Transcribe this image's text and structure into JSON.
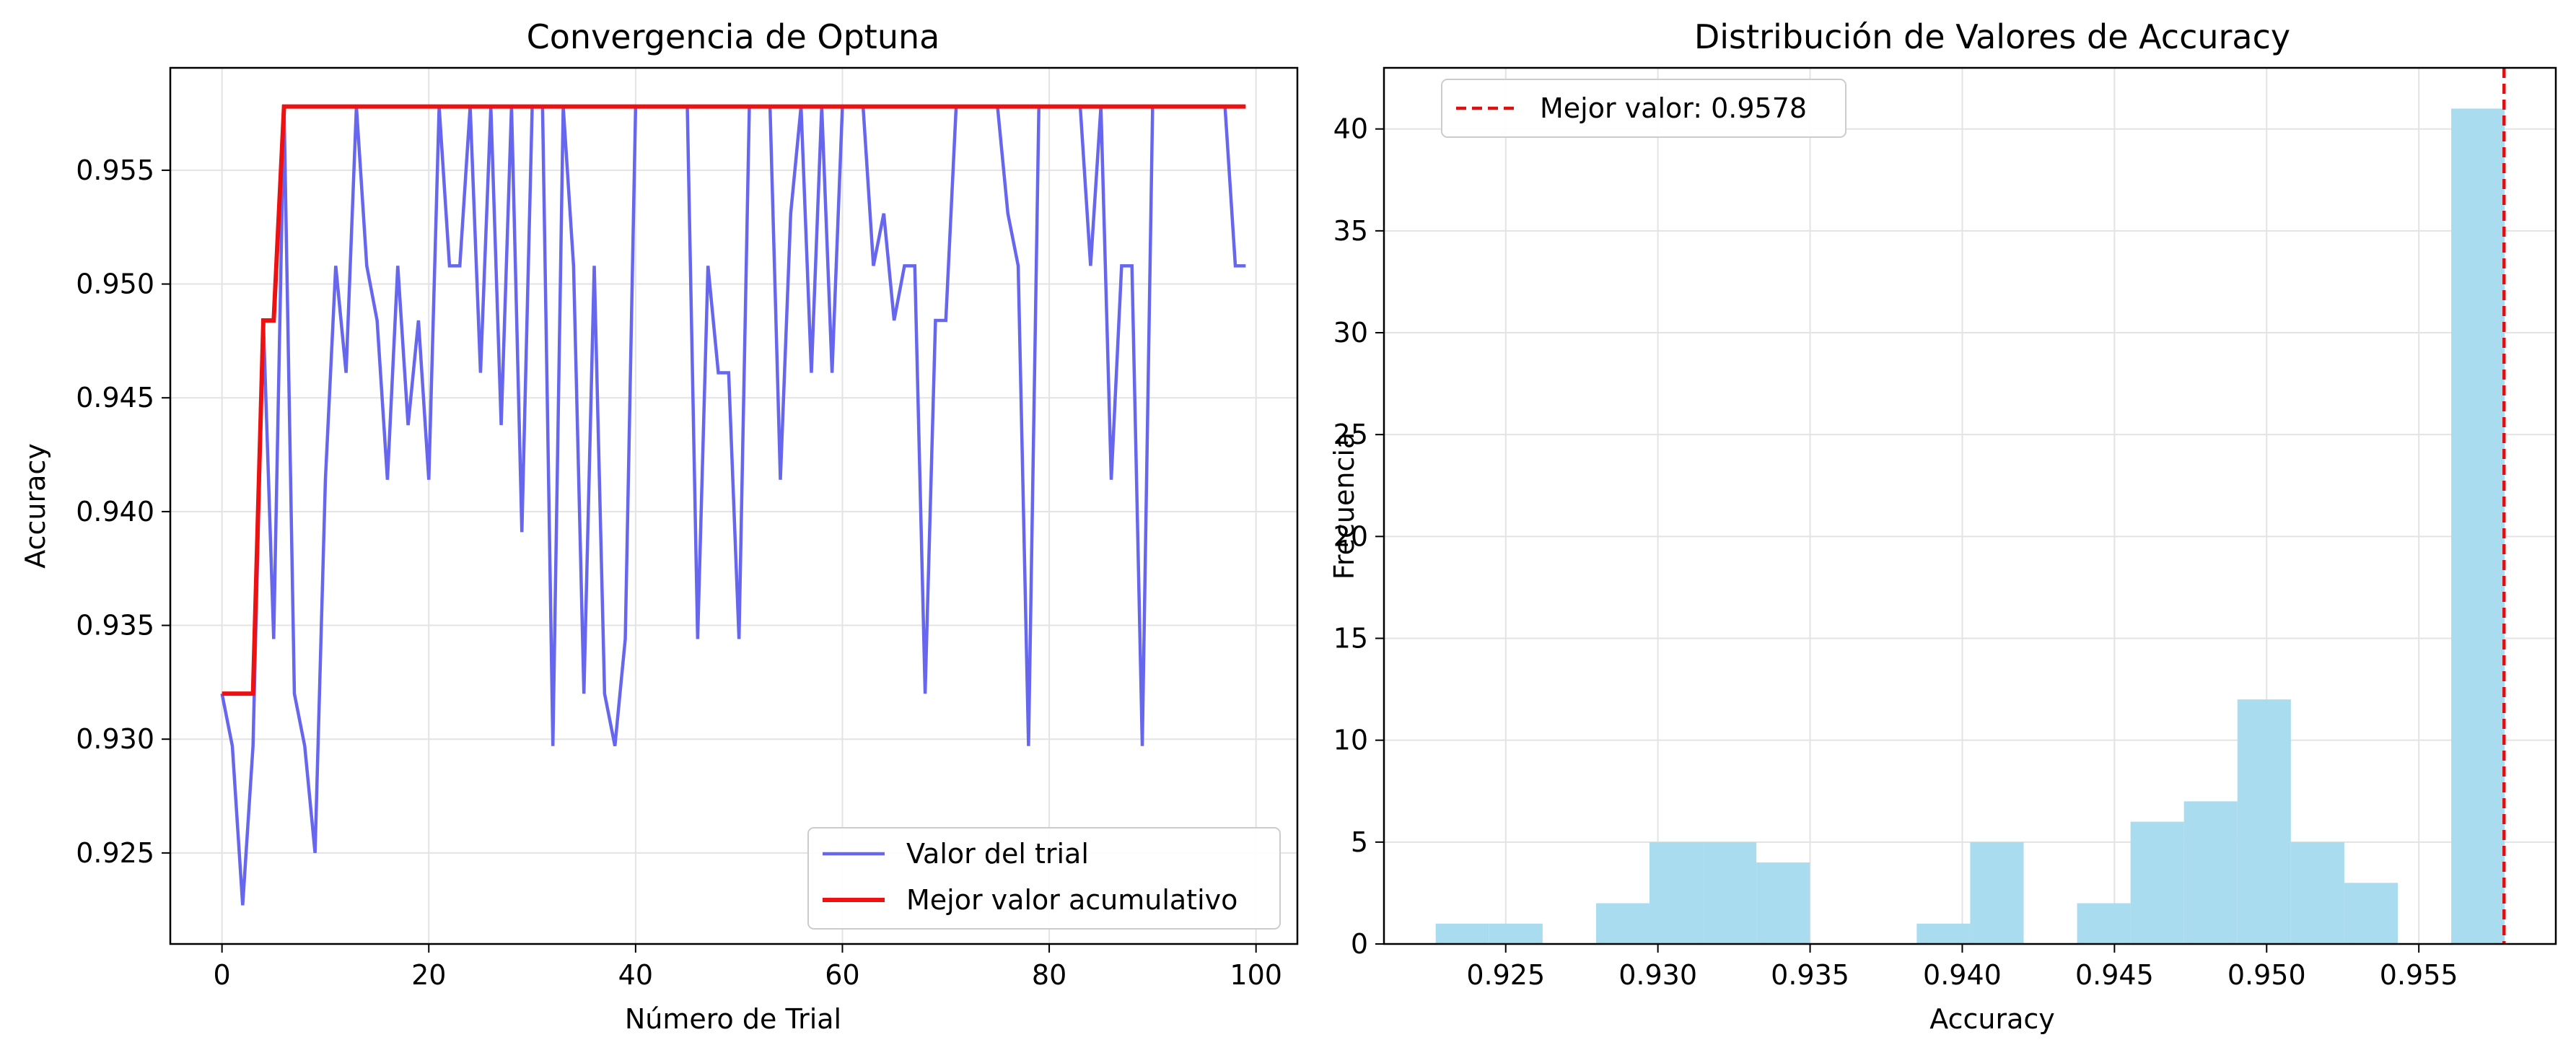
{
  "chart_data": [
    {
      "type": "line",
      "title": "Convergencia de Optuna",
      "xlabel": "Número de Trial",
      "ylabel": "Accuracy",
      "xlim": [
        -5,
        104
      ],
      "ylim": [
        0.921,
        0.9595
      ],
      "xticks": [
        0,
        20,
        40,
        60,
        80,
        100
      ],
      "yticks": [
        0.925,
        0.93,
        0.935,
        0.94,
        0.945,
        0.95,
        0.955
      ],
      "ytick_labels": [
        "0.925",
        "0.930",
        "0.935",
        "0.940",
        "0.945",
        "0.950",
        "0.955"
      ],
      "grid": true,
      "legend_position": "lower-right",
      "series": [
        {
          "name": "Valor del trial",
          "color": "#6666ee",
          "x": [
            0,
            1,
            2,
            3,
            4,
            5,
            6,
            7,
            8,
            9,
            10,
            11,
            12,
            13,
            14,
            15,
            16,
            17,
            18,
            19,
            20,
            21,
            22,
            23,
            24,
            25,
            26,
            27,
            28,
            29,
            30,
            31,
            32,
            33,
            34,
            35,
            36,
            37,
            38,
            39,
            40,
            41,
            42,
            43,
            44,
            45,
            46,
            47,
            48,
            49,
            50,
            51,
            52,
            53,
            54,
            55,
            56,
            57,
            58,
            59,
            60,
            61,
            62,
            63,
            64,
            65,
            66,
            67,
            68,
            69,
            70,
            71,
            72,
            73,
            74,
            75,
            76,
            77,
            78,
            79,
            80,
            81,
            82,
            83,
            84,
            85,
            86,
            87,
            88,
            89,
            90,
            91,
            92,
            93,
            94,
            95,
            96,
            97,
            98,
            99
          ],
          "y": [
            0.932,
            0.9297,
            0.9227,
            0.9297,
            0.9484,
            0.9344,
            0.9578,
            0.932,
            0.9297,
            0.925,
            0.9414,
            0.9508,
            0.9461,
            0.9578,
            0.9508,
            0.9484,
            0.9414,
            0.9508,
            0.9438,
            0.9484,
            0.9414,
            0.9578,
            0.9508,
            0.9508,
            0.9578,
            0.9461,
            0.9578,
            0.9438,
            0.9578,
            0.9391,
            0.9578,
            0.9578,
            0.9297,
            0.9578,
            0.9508,
            0.932,
            0.9508,
            0.932,
            0.9297,
            0.9344,
            0.9578,
            0.9578,
            0.9578,
            0.9578,
            0.9578,
            0.9578,
            0.9344,
            0.9508,
            0.9461,
            0.9461,
            0.9344,
            0.9578,
            0.9578,
            0.9578,
            0.9414,
            0.9531,
            0.9578,
            0.9461,
            0.9578,
            0.9461,
            0.9578,
            0.9578,
            0.9578,
            0.9508,
            0.9531,
            0.9484,
            0.9508,
            0.9508,
            0.932,
            0.9484,
            0.9484,
            0.9578,
            0.9578,
            0.9578,
            0.9578,
            0.9578,
            0.9531,
            0.9508,
            0.9297,
            0.9578,
            0.9578,
            0.9578,
            0.9578,
            0.9578,
            0.9508,
            0.9578,
            0.9414,
            0.9508,
            0.9508,
            0.9297,
            0.9578,
            0.9578,
            0.9578,
            0.9578,
            0.9578,
            0.9578,
            0.9578,
            0.9578,
            0.9508,
            0.9508
          ]
        },
        {
          "name": "Mejor valor acumulativo",
          "color": "#ee1111",
          "x": [
            0,
            1,
            2,
            3,
            4,
            5,
            6,
            99
          ],
          "y": [
            0.932,
            0.932,
            0.932,
            0.932,
            0.9484,
            0.9484,
            0.9578,
            0.9578
          ]
        }
      ]
    },
    {
      "type": "bar",
      "subtype": "histogram",
      "title": "Distribución de Valores de Accuracy",
      "xlabel": "Accuracy",
      "ylabel": "Frecuencia",
      "xlim": [
        0.921,
        0.9595
      ],
      "ylim": [
        0,
        43
      ],
      "xticks": [
        0.925,
        0.93,
        0.935,
        0.94,
        0.945,
        0.95,
        0.955
      ],
      "xtick_labels": [
        "0.925",
        "0.930",
        "0.935",
        "0.940",
        "0.945",
        "0.950",
        "0.955"
      ],
      "yticks": [
        0,
        5,
        10,
        15,
        20,
        25,
        30,
        35,
        40
      ],
      "grid": true,
      "legend_position": "top-left",
      "bar_color": "#a8dcee",
      "bin_start": 0.9227,
      "bin_width": 0.001756,
      "counts": [
        1,
        1,
        0,
        2,
        5,
        5,
        4,
        0,
        0,
        1,
        5,
        0,
        2,
        6,
        7,
        12,
        5,
        3,
        0,
        41
      ],
      "reference_line": {
        "name": "Mejor valor: 0.9578",
        "value": 0.9578,
        "color": "#dd1111",
        "style": "dashed"
      }
    }
  ]
}
